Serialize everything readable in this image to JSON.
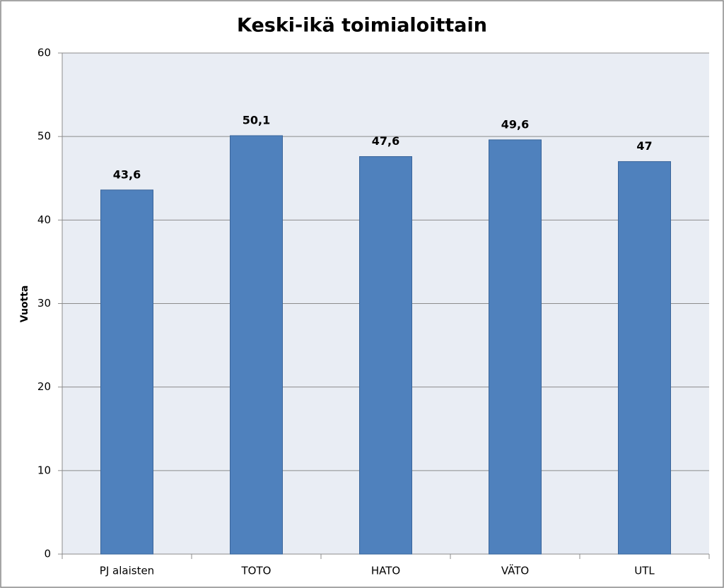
{
  "chart_data": {
    "type": "bar",
    "title": "Keski-ikä toimialoittain",
    "y_label": "Vuotta",
    "categories": [
      "PJ alaisten",
      "TOTO",
      "HATO",
      "VÄTO",
      "UTL"
    ],
    "values": [
      43.6,
      50.1,
      47.6,
      49.6,
      47
    ],
    "value_labels": [
      "43,6",
      "50,1",
      "47,6",
      "49,6",
      "47"
    ],
    "color": "#4f81bd",
    "ylim": [
      0,
      60
    ],
    "yticks": [
      0,
      10,
      20,
      30,
      40,
      50,
      60
    ],
    "grid": true
  }
}
